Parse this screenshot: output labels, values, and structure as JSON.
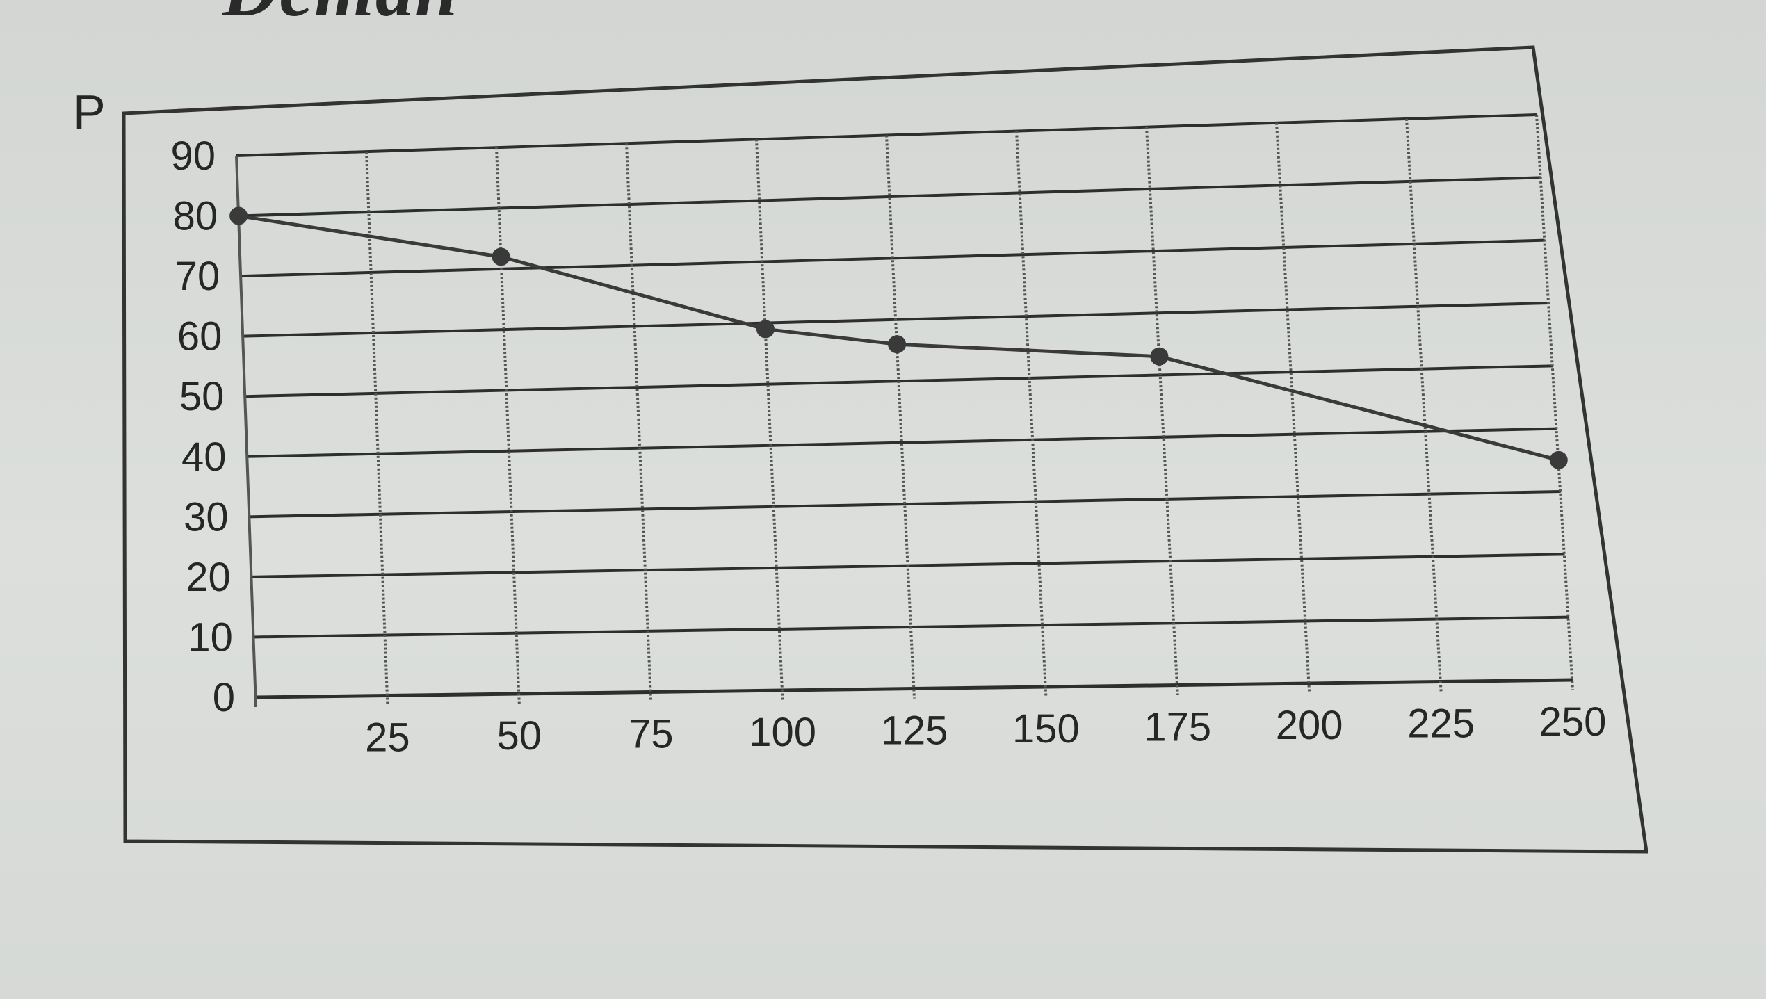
{
  "page": {
    "title_fragment": "Deman"
  },
  "chart_data": {
    "type": "line",
    "title": "",
    "ylabel": "P",
    "xlabel": "",
    "xlim": [
      0,
      250
    ],
    "ylim": [
      0,
      90
    ],
    "x_ticks": [
      25,
      50,
      75,
      100,
      125,
      150,
      175,
      200,
      225,
      250
    ],
    "y_ticks": [
      0,
      10,
      20,
      30,
      40,
      50,
      60,
      70,
      80,
      90
    ],
    "grid": true,
    "legend": "none",
    "line_color": "#3a3a3a",
    "series": [
      {
        "x": [
          0,
          50,
          100,
          125,
          175,
          250
        ],
        "y": [
          80,
          72,
          59,
          56,
          53,
          35
        ]
      }
    ]
  }
}
